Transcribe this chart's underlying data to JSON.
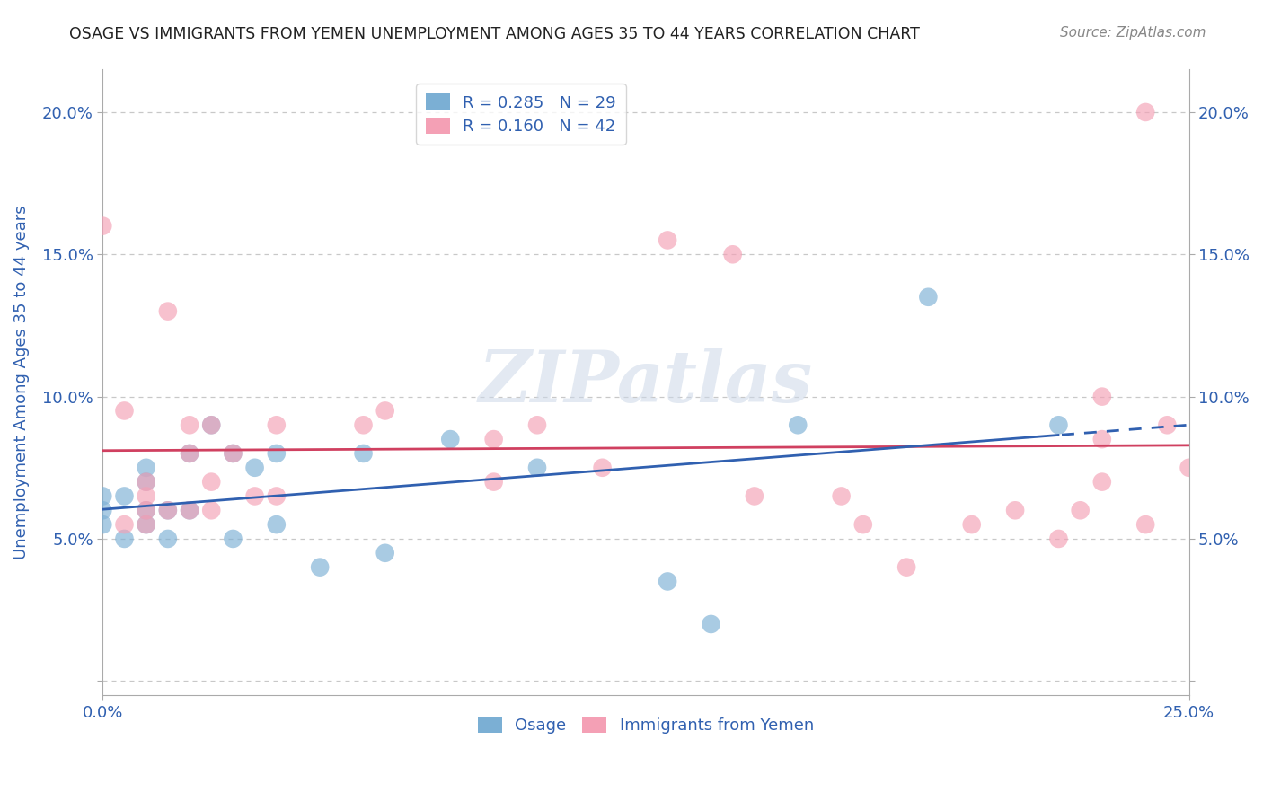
{
  "title": "OSAGE VS IMMIGRANTS FROM YEMEN UNEMPLOYMENT AMONG AGES 35 TO 44 YEARS CORRELATION CHART",
  "source_text": "Source: ZipAtlas.com",
  "ylabel": "Unemployment Among Ages 35 to 44 years",
  "xlim": [
    0.0,
    0.25
  ],
  "ylim": [
    -0.005,
    0.215
  ],
  "ytick_vals": [
    0.0,
    0.05,
    0.1,
    0.15,
    0.2
  ],
  "ytick_labels": [
    "",
    "5.0%",
    "10.0%",
    "15.0%",
    "20.0%"
  ],
  "xtick_vals": [
    0.0,
    0.25
  ],
  "xtick_labels": [
    "0.0%",
    "25.0%"
  ],
  "legend_entries": [
    {
      "label": "R = 0.285   N = 29",
      "color": "#a8c8e8"
    },
    {
      "label": "R = 0.160   N = 42",
      "color": "#f4a0b5"
    }
  ],
  "bottom_legend": [
    "Osage",
    "Immigrants from Yemen"
  ],
  "watermark": "ZIPatlas",
  "osage_scatter_x": [
    0.0,
    0.0,
    0.0,
    0.005,
    0.005,
    0.01,
    0.01,
    0.01,
    0.01,
    0.015,
    0.015,
    0.02,
    0.02,
    0.025,
    0.03,
    0.03,
    0.035,
    0.04,
    0.04,
    0.05,
    0.06,
    0.065,
    0.08,
    0.1,
    0.13,
    0.14,
    0.16,
    0.19,
    0.22
  ],
  "osage_scatter_y": [
    0.055,
    0.06,
    0.065,
    0.05,
    0.065,
    0.055,
    0.06,
    0.07,
    0.075,
    0.05,
    0.06,
    0.06,
    0.08,
    0.09,
    0.05,
    0.08,
    0.075,
    0.055,
    0.08,
    0.04,
    0.08,
    0.045,
    0.085,
    0.075,
    0.035,
    0.02,
    0.09,
    0.135,
    0.09
  ],
  "yemen_scatter_x": [
    0.0,
    0.005,
    0.005,
    0.01,
    0.01,
    0.01,
    0.01,
    0.015,
    0.015,
    0.02,
    0.02,
    0.02,
    0.025,
    0.025,
    0.025,
    0.03,
    0.035,
    0.04,
    0.04,
    0.06,
    0.065,
    0.09,
    0.09,
    0.1,
    0.115,
    0.13,
    0.145,
    0.15,
    0.17,
    0.175,
    0.185,
    0.2,
    0.21,
    0.22,
    0.225,
    0.23,
    0.23,
    0.23,
    0.24,
    0.24,
    0.245,
    0.25
  ],
  "yemen_scatter_y": [
    0.16,
    0.055,
    0.095,
    0.055,
    0.06,
    0.065,
    0.07,
    0.06,
    0.13,
    0.06,
    0.08,
    0.09,
    0.06,
    0.07,
    0.09,
    0.08,
    0.065,
    0.065,
    0.09,
    0.09,
    0.095,
    0.07,
    0.085,
    0.09,
    0.075,
    0.155,
    0.15,
    0.065,
    0.065,
    0.055,
    0.04,
    0.055,
    0.06,
    0.05,
    0.06,
    0.07,
    0.085,
    0.1,
    0.055,
    0.2,
    0.09,
    0.075
  ],
  "osage_color": "#7bafd4",
  "yemen_color": "#f4a0b5",
  "osage_line_color": "#3060b0",
  "yemen_line_color": "#d04060",
  "background_color": "#ffffff",
  "grid_color": "#c8c8c8",
  "title_color": "#222222",
  "axis_label_color": "#3060b0",
  "tick_color": "#3060b0",
  "spine_color": "#aaaaaa"
}
